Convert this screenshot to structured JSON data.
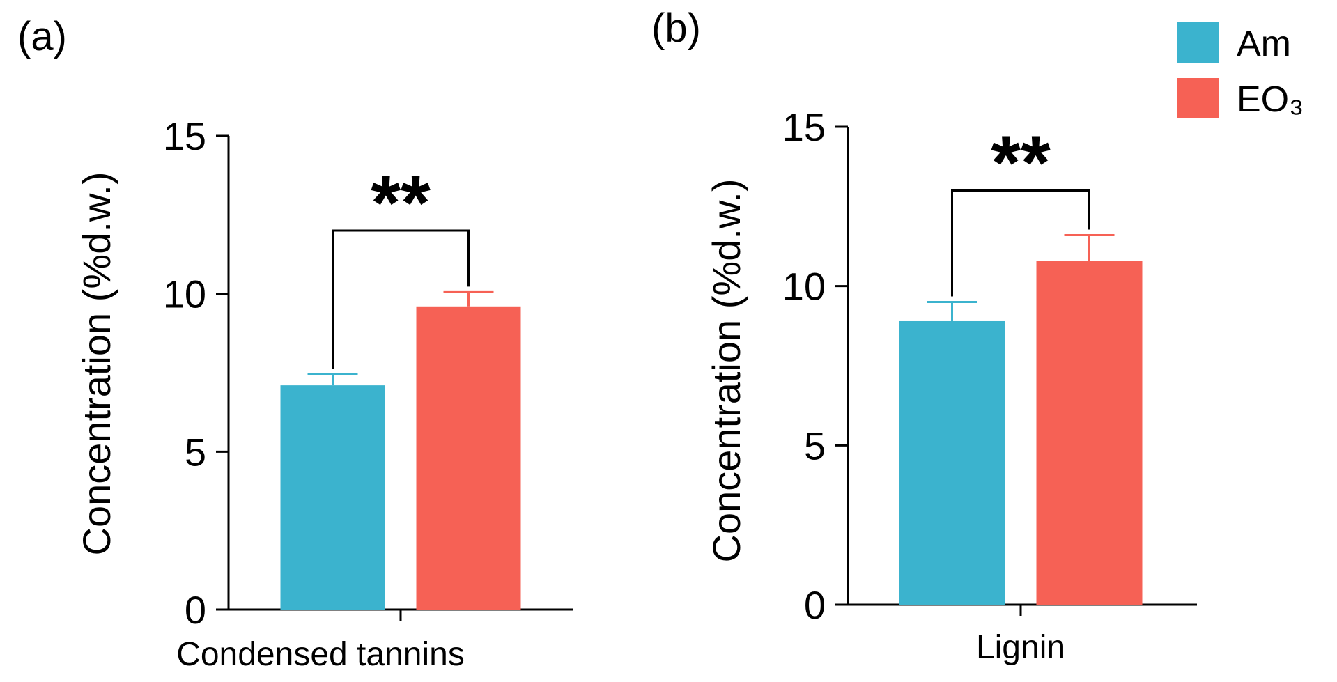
{
  "colors": {
    "Am": "#3bb3ce",
    "EO3": "#f66155"
  },
  "legend": [
    {
      "name": "Am",
      "color": "#3bb3ce"
    },
    {
      "name": "EO₃",
      "color": "#f66155"
    }
  ],
  "chart_data": [
    {
      "type": "bar",
      "panel_label": "(a)",
      "title": "",
      "categories": [
        "Condensed tannins"
      ],
      "series": [
        {
          "name": "Am",
          "values": [
            7.1
          ],
          "errors": [
            0.35
          ]
        },
        {
          "name": "EO₃",
          "values": [
            9.6
          ],
          "errors": [
            0.45
          ]
        }
      ],
      "ylabel": "Concentration (%d.w.)",
      "xlabel": "",
      "ylim": [
        0,
        15
      ],
      "yticks": [
        "0",
        "5",
        "10",
        "15"
      ],
      "significance": "**",
      "bracket_height": 12.0
    },
    {
      "type": "bar",
      "panel_label": "(b)",
      "title": "",
      "categories": [
        "Lignin"
      ],
      "series": [
        {
          "name": "Am",
          "values": [
            8.9
          ],
          "errors": [
            0.6
          ]
        },
        {
          "name": "EO₃",
          "values": [
            10.8
          ],
          "errors": [
            0.8
          ]
        }
      ],
      "ylabel": "Concentration (%d.w.)",
      "xlabel": "",
      "ylim": [
        0,
        15
      ],
      "yticks": [
        "0",
        "5",
        "10",
        "15"
      ],
      "significance": "**",
      "bracket_height": 13.0
    }
  ]
}
